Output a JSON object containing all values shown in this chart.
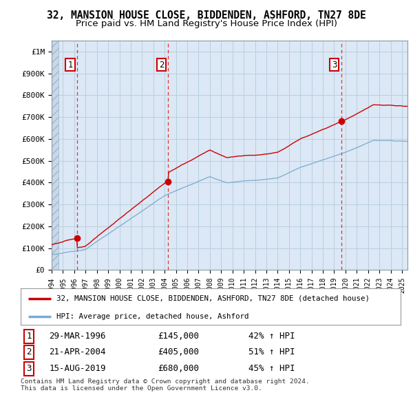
{
  "title": "32, MANSION HOUSE CLOSE, BIDDENDEN, ASHFORD, TN27 8DE",
  "subtitle": "Price paid vs. HM Land Registry's House Price Index (HPI)",
  "ylim": [
    0,
    1050000
  ],
  "yticks": [
    0,
    100000,
    200000,
    300000,
    400000,
    500000,
    600000,
    700000,
    800000,
    900000,
    1000000
  ],
  "ytick_labels": [
    "£0",
    "£100K",
    "£200K",
    "£300K",
    "£400K",
    "£500K",
    "£600K",
    "£700K",
    "£800K",
    "£900K",
    "£1M"
  ],
  "xlim_start": 1994.0,
  "xlim_end": 2025.5,
  "sale_color": "#cc0000",
  "hpi_color": "#7aaad0",
  "sale_dates": [
    1996.24,
    2004.31,
    2019.62
  ],
  "sale_prices": [
    145000,
    405000,
    680000
  ],
  "sale_labels": [
    "1",
    "2",
    "3"
  ],
  "legend_sale": "32, MANSION HOUSE CLOSE, BIDDENDEN, ASHFORD, TN27 8DE (detached house)",
  "legend_hpi": "HPI: Average price, detached house, Ashford",
  "table_rows": [
    [
      "1",
      "29-MAR-1996",
      "£145,000",
      "42% ↑ HPI"
    ],
    [
      "2",
      "21-APR-2004",
      "£405,000",
      "51% ↑ HPI"
    ],
    [
      "3",
      "15-AUG-2019",
      "£680,000",
      "45% ↑ HPI"
    ]
  ],
  "footnote": "Contains HM Land Registry data © Crown copyright and database right 2024.\nThis data is licensed under the Open Government Licence v3.0.",
  "background_color": "#ffffff",
  "plot_bg_color": "#dce8f5",
  "grid_color": "#b8cfe0",
  "title_fontsize": 10.5,
  "subtitle_fontsize": 9.5
}
